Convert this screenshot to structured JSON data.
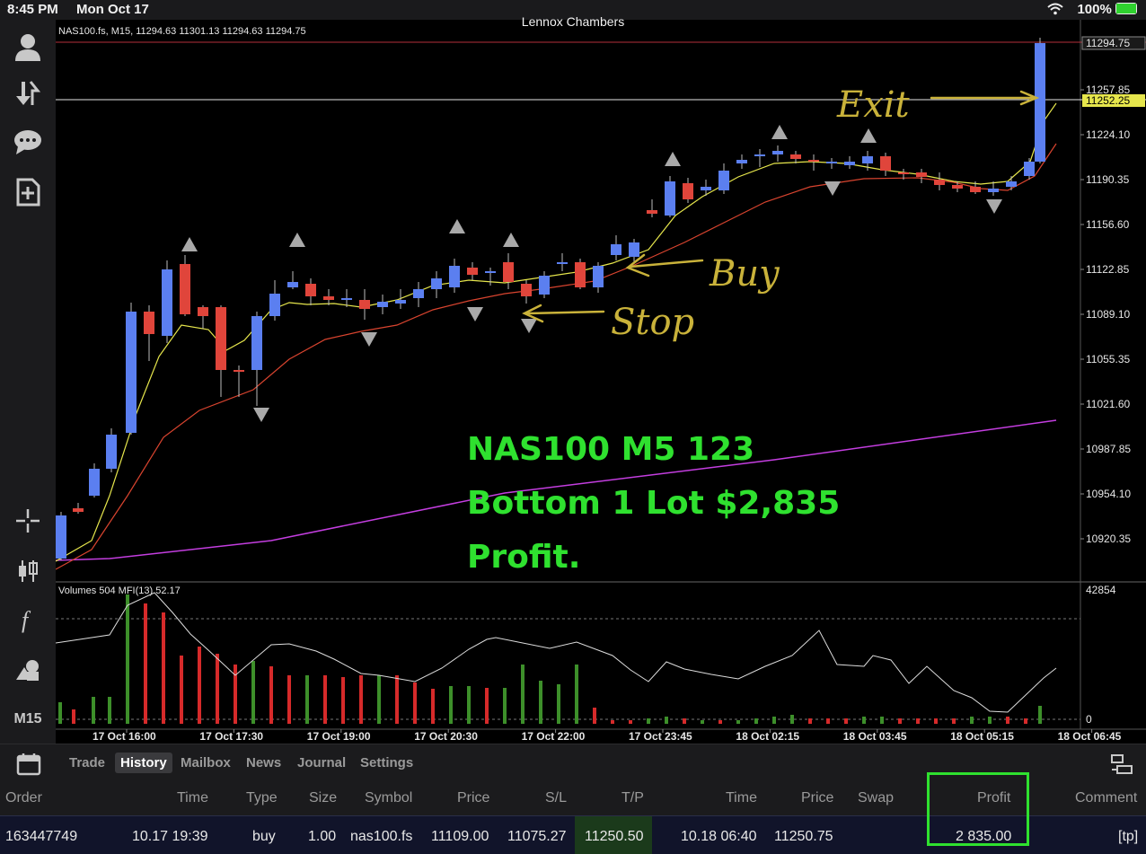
{
  "status_bar": {
    "time": "8:45 PM",
    "date": "Mon Oct 17",
    "account": "Lennox Chambers",
    "battery": "100%"
  },
  "sidebar": {
    "timeframe": "M15",
    "icons": [
      "account-icon",
      "trade-arrows-icon",
      "chat-icon",
      "new-document-icon",
      "crosshair-icon",
      "candlestick-icon",
      "function-icon",
      "objects-icon"
    ]
  },
  "chart": {
    "info_line": "NAS100.fs, M15, 11294.63 11301.13 11294.63 11294.75",
    "indicator_line": "Volumes 504 MFI(13) 52.17",
    "price_labels": [
      "11257.85",
      "11224.10",
      "11190.35",
      "11156.60",
      "11122.85",
      "11089.10",
      "11055.35",
      "11021.60",
      "10987.85",
      "10954.10",
      "10920.35"
    ],
    "price_markers": {
      "bid": "11294.75",
      "ask": "11252.25"
    },
    "volume_labels": [
      "42854",
      "0"
    ],
    "time_labels": [
      "17 Oct 16:00",
      "17 Oct 17:30",
      "17 Oct 19:00",
      "17 Oct 20:30",
      "17 Oct 22:00",
      "17 Oct 23:45",
      "18 Oct 02:15",
      "18 Oct 03:45",
      "18 Oct 05:15",
      "18 Oct 06:45"
    ],
    "annotation_lines": [
      "NAS100 M5 123",
      "Bottom 1 Lot $2,835",
      "Profit."
    ],
    "handwritten": [
      "Exit",
      "Buy",
      "Stop"
    ],
    "colors": {
      "bull": "#5b7ff0",
      "bear": "#e0453b",
      "ema_fast": "#e6e64c",
      "ema_slow": "#d9442f",
      "ma_long": "#c43ee0",
      "vol_up": "#3d8f2a",
      "vol_down": "#d62a2a",
      "annotation": "#2fe12f",
      "handwriting": "#c9b23a"
    }
  },
  "toolbar": {
    "tabs": [
      "Trade",
      "History",
      "Mailbox",
      "News",
      "Journal",
      "Settings"
    ],
    "active_tab": "History"
  },
  "table": {
    "headers": [
      "Order",
      "Time",
      "Type",
      "Size",
      "Symbol",
      "Price",
      "S/L",
      "T/P",
      "Time",
      "Price",
      "Swap",
      "Profit",
      "Comment"
    ],
    "rows": [
      [
        "163447749",
        "10.17 19:39",
        "buy",
        "1.00",
        "nas100.fs",
        "11109.00",
        "11075.27",
        "11250.50",
        "10.18 06:40",
        "11250.75",
        "",
        "2 835.00",
        "[tp]"
      ]
    ]
  }
}
